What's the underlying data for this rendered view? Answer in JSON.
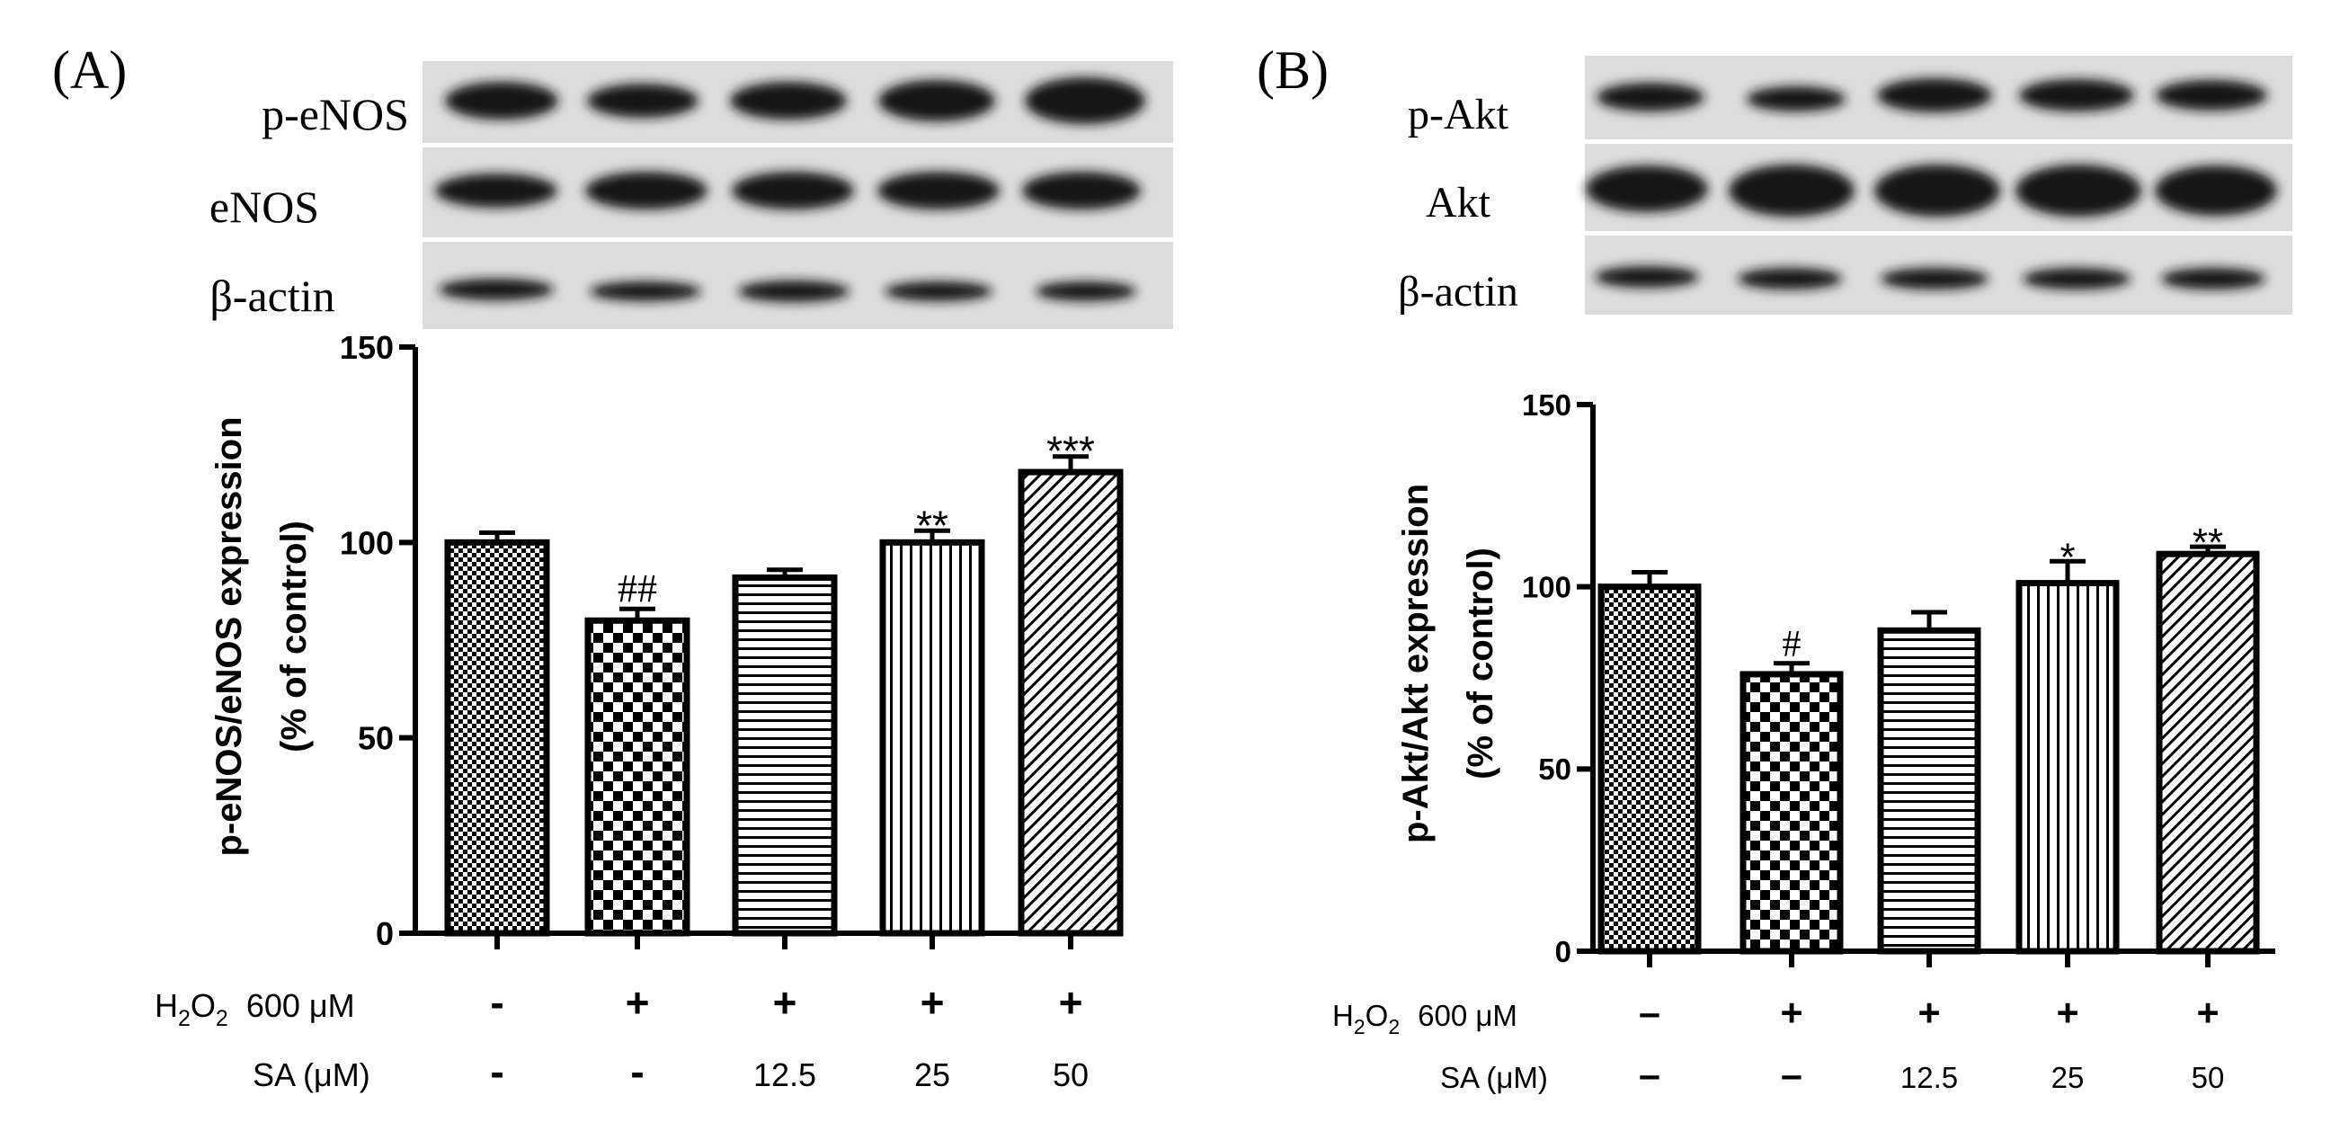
{
  "colors": {
    "ink": "#000000",
    "background": "#ffffff",
    "blot_bg": "#dcdcdc",
    "blot_band": "#161616",
    "blot_separator": "#ffffff"
  },
  "panels": [
    {
      "label": "(A)",
      "blot": {
        "rows": [
          "p-eNOS",
          "eNOS",
          "β-actin"
        ]
      },
      "treatments": {
        "rows": [
          {
            "label_main": "H",
            "label_sub1": "2",
            "label_mid": "O",
            "label_sub2": "2",
            "label_tail": "600 μM",
            "values": [
              "-",
              "+",
              "+",
              "+",
              "+"
            ]
          },
          {
            "label_main": "SA (μM)",
            "values": [
              "-",
              "-",
              "12.5",
              "25",
              "50"
            ]
          }
        ]
      }
    },
    {
      "label": "(B)",
      "blot": {
        "rows": [
          "p-Akt",
          "Akt",
          "β-actin"
        ]
      },
      "treatments": {
        "rows": [
          {
            "label_main": "H",
            "label_sub1": "2",
            "label_mid": "O",
            "label_sub2": "2",
            "label_tail": "600 μM",
            "values": [
              "–",
              "+",
              "+",
              "+",
              "+"
            ]
          },
          {
            "label_main": "SA (μM)",
            "values": [
              "–",
              "–",
              "12.5",
              "25",
              "50"
            ]
          }
        ]
      }
    }
  ],
  "chart_data": [
    {
      "type": "bar",
      "ylabel": "p-eNOS/eNOS expression",
      "ylabel_line2": "(% of control)",
      "ylim": [
        0,
        150
      ],
      "yticks": [
        "0",
        "50",
        "100",
        "150"
      ],
      "categories": [
        "1",
        "2",
        "3",
        "4",
        "5"
      ],
      "values": [
        100,
        80,
        91,
        100,
        118
      ],
      "errors": [
        2.5,
        3,
        2,
        3,
        4
      ],
      "annotations": [
        "",
        "##",
        "",
        "**",
        "***"
      ],
      "patterns": [
        "checker-fine",
        "checker-coarse",
        "horizontal-lines",
        "vertical-lines",
        "diagonal-lines"
      ],
      "grid": false
    },
    {
      "type": "bar",
      "ylabel": "p-Akt/Akt expression",
      "ylabel_line2": "(% of control)",
      "ylim": [
        0,
        150
      ],
      "yticks": [
        "0",
        "50",
        "100",
        "150"
      ],
      "categories": [
        "1",
        "2",
        "3",
        "4",
        "5"
      ],
      "values": [
        100,
        76,
        88,
        101,
        109
      ],
      "errors": [
        4,
        3,
        5,
        6,
        2
      ],
      "annotations": [
        "",
        "#",
        "",
        "*",
        "**"
      ],
      "patterns": [
        "checker-fine",
        "checker-coarse",
        "horizontal-lines",
        "vertical-lines",
        "diagonal-lines"
      ],
      "grid": false
    }
  ]
}
